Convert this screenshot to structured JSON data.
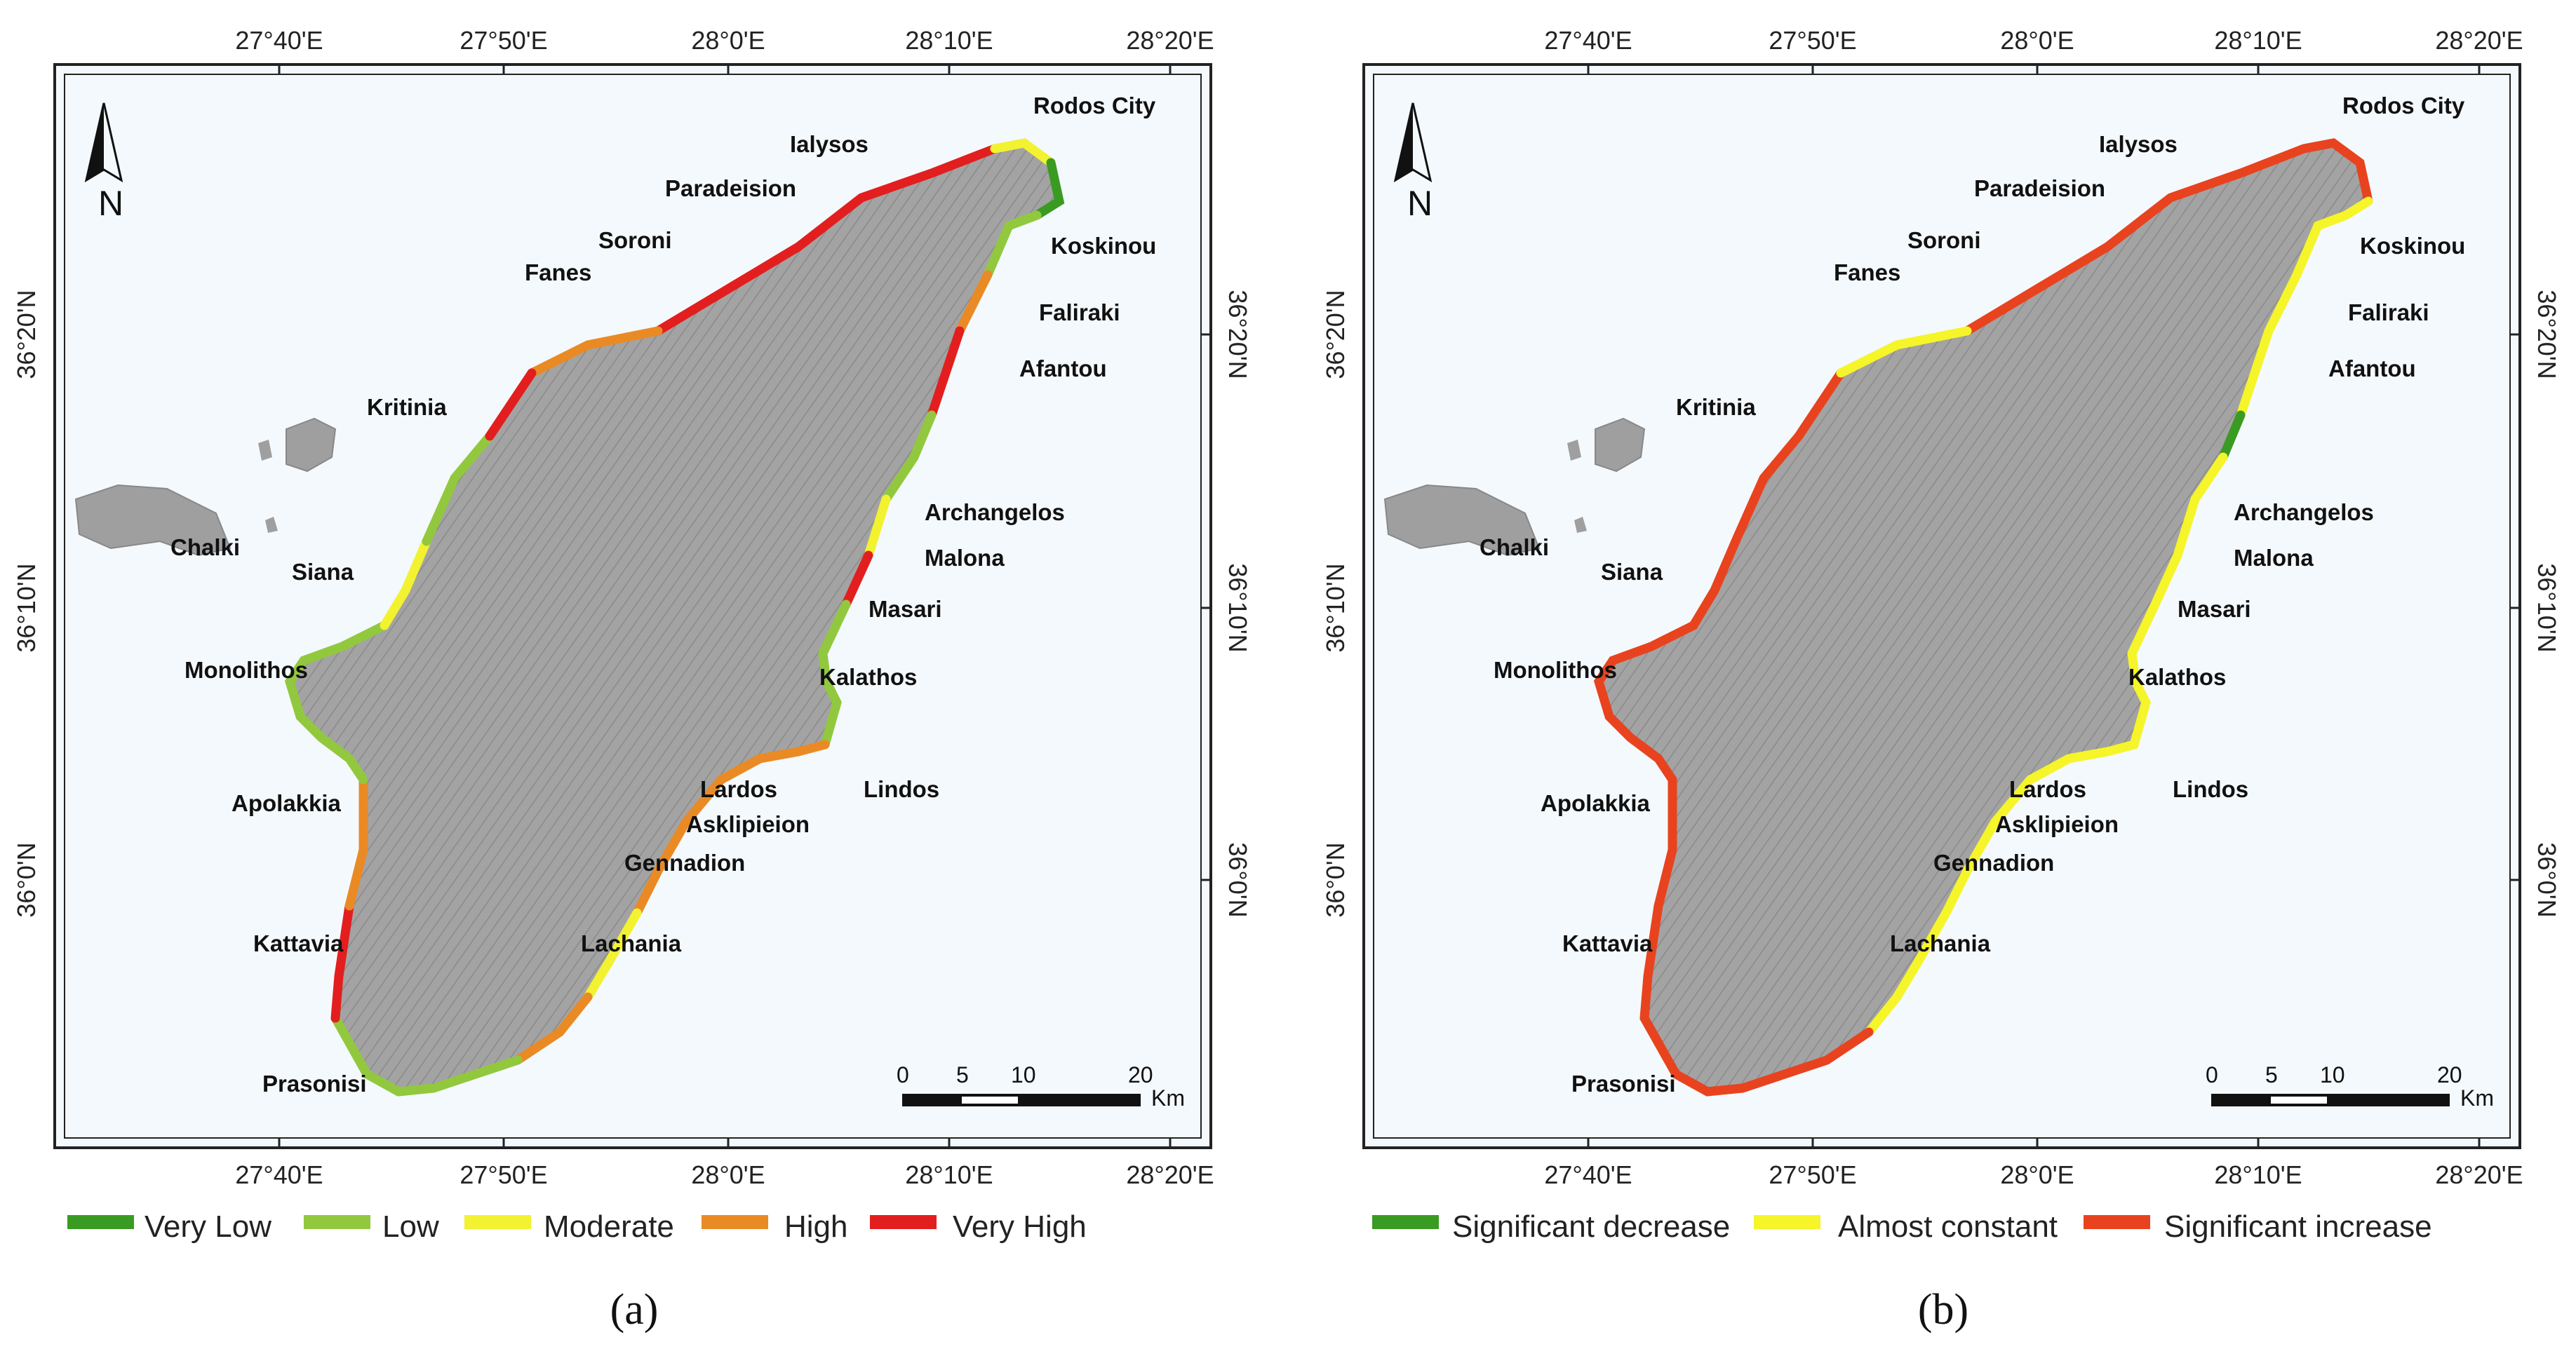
{
  "panels": [
    {
      "id": "a",
      "panel_label": "(a)",
      "lon_ticks": [
        "27°40'E",
        "27°50'E",
        "28°0'E",
        "28°10'E",
        "28°20'E"
      ],
      "lat_ticks": [
        "36°20'N",
        "36°10'N",
        "36°0'N"
      ],
      "places": [
        "Rodos City",
        "Ialysos",
        "Paradeision",
        "Koskinou",
        "Soroni",
        "Fanes",
        "Faliraki",
        "Afantou",
        "Kritinia",
        "Chalki",
        "Siana",
        "Archangelos",
        "Malona",
        "Masari",
        "Monolithos",
        "Kalathos",
        "Apolakkia",
        "Lardos",
        "Lindos",
        "Asklipieion",
        "Gennadion",
        "Kattavia",
        "Lachania",
        "Prasonisi"
      ],
      "north_label": "N",
      "scale": {
        "ticks": [
          "0",
          "5",
          "10",
          "20"
        ],
        "unit": "Km"
      },
      "legend": [
        {
          "label": "Very Low",
          "color": "#3a9b22"
        },
        {
          "label": "Low",
          "color": "#92c83e"
        },
        {
          "label": "Moderate",
          "color": "#f2f231"
        },
        {
          "label": "High",
          "color": "#ea8a25"
        },
        {
          "label": "Very High",
          "color": "#e31e1e"
        }
      ]
    },
    {
      "id": "b",
      "panel_label": "(b)",
      "lon_ticks": [
        "27°40'E",
        "27°50'E",
        "28°0'E",
        "28°10'E",
        "28°20'E"
      ],
      "lat_ticks": [
        "36°20'N",
        "36°10'N",
        "36°0'N"
      ],
      "places": [
        "Rodos City",
        "Ialysos",
        "Paradeision",
        "Koskinou",
        "Soroni",
        "Fanes",
        "Faliraki",
        "Afantou",
        "Kritinia",
        "Chalki",
        "Siana",
        "Archangelos",
        "Malona",
        "Masari",
        "Monolithos",
        "Kalathos",
        "Apolakkia",
        "Lardos",
        "Lindos",
        "Asklipieion",
        "Gennadion",
        "Kattavia",
        "Lachania",
        "Prasonisi"
      ],
      "north_label": "N",
      "scale": {
        "ticks": [
          "0",
          "5",
          "10",
          "20"
        ],
        "unit": "Km"
      },
      "legend": [
        {
          "label": "Significant decrease",
          "color": "#3a9b22"
        },
        {
          "label": "Almost constant",
          "color": "#f5f52a"
        },
        {
          "label": "Significant increase",
          "color": "#e8431e"
        }
      ]
    }
  ],
  "colors": {
    "sea": "#f4f9fd",
    "land": "#9f9f9f",
    "frame": "#222222"
  }
}
